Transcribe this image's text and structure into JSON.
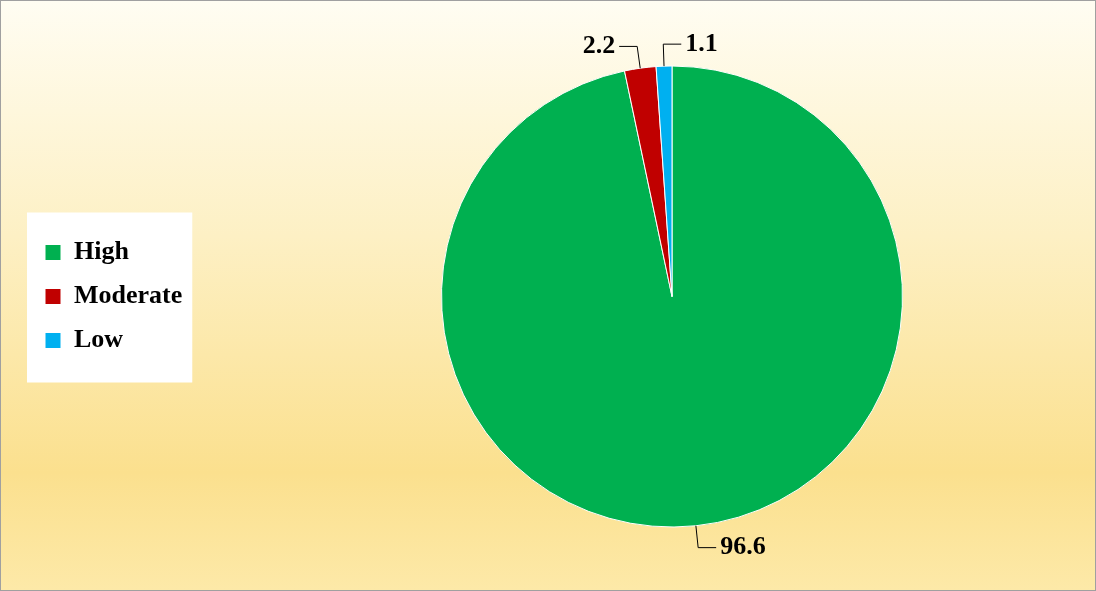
{
  "chart_data": {
    "type": "pie",
    "categories": [
      "High",
      "Moderate",
      "Low"
    ],
    "values": [
      96.6,
      2.2,
      1.1
    ],
    "colors": [
      "#00b050",
      "#c00000",
      "#00b0f0"
    ],
    "data_labels": true,
    "legend": "left"
  }
}
